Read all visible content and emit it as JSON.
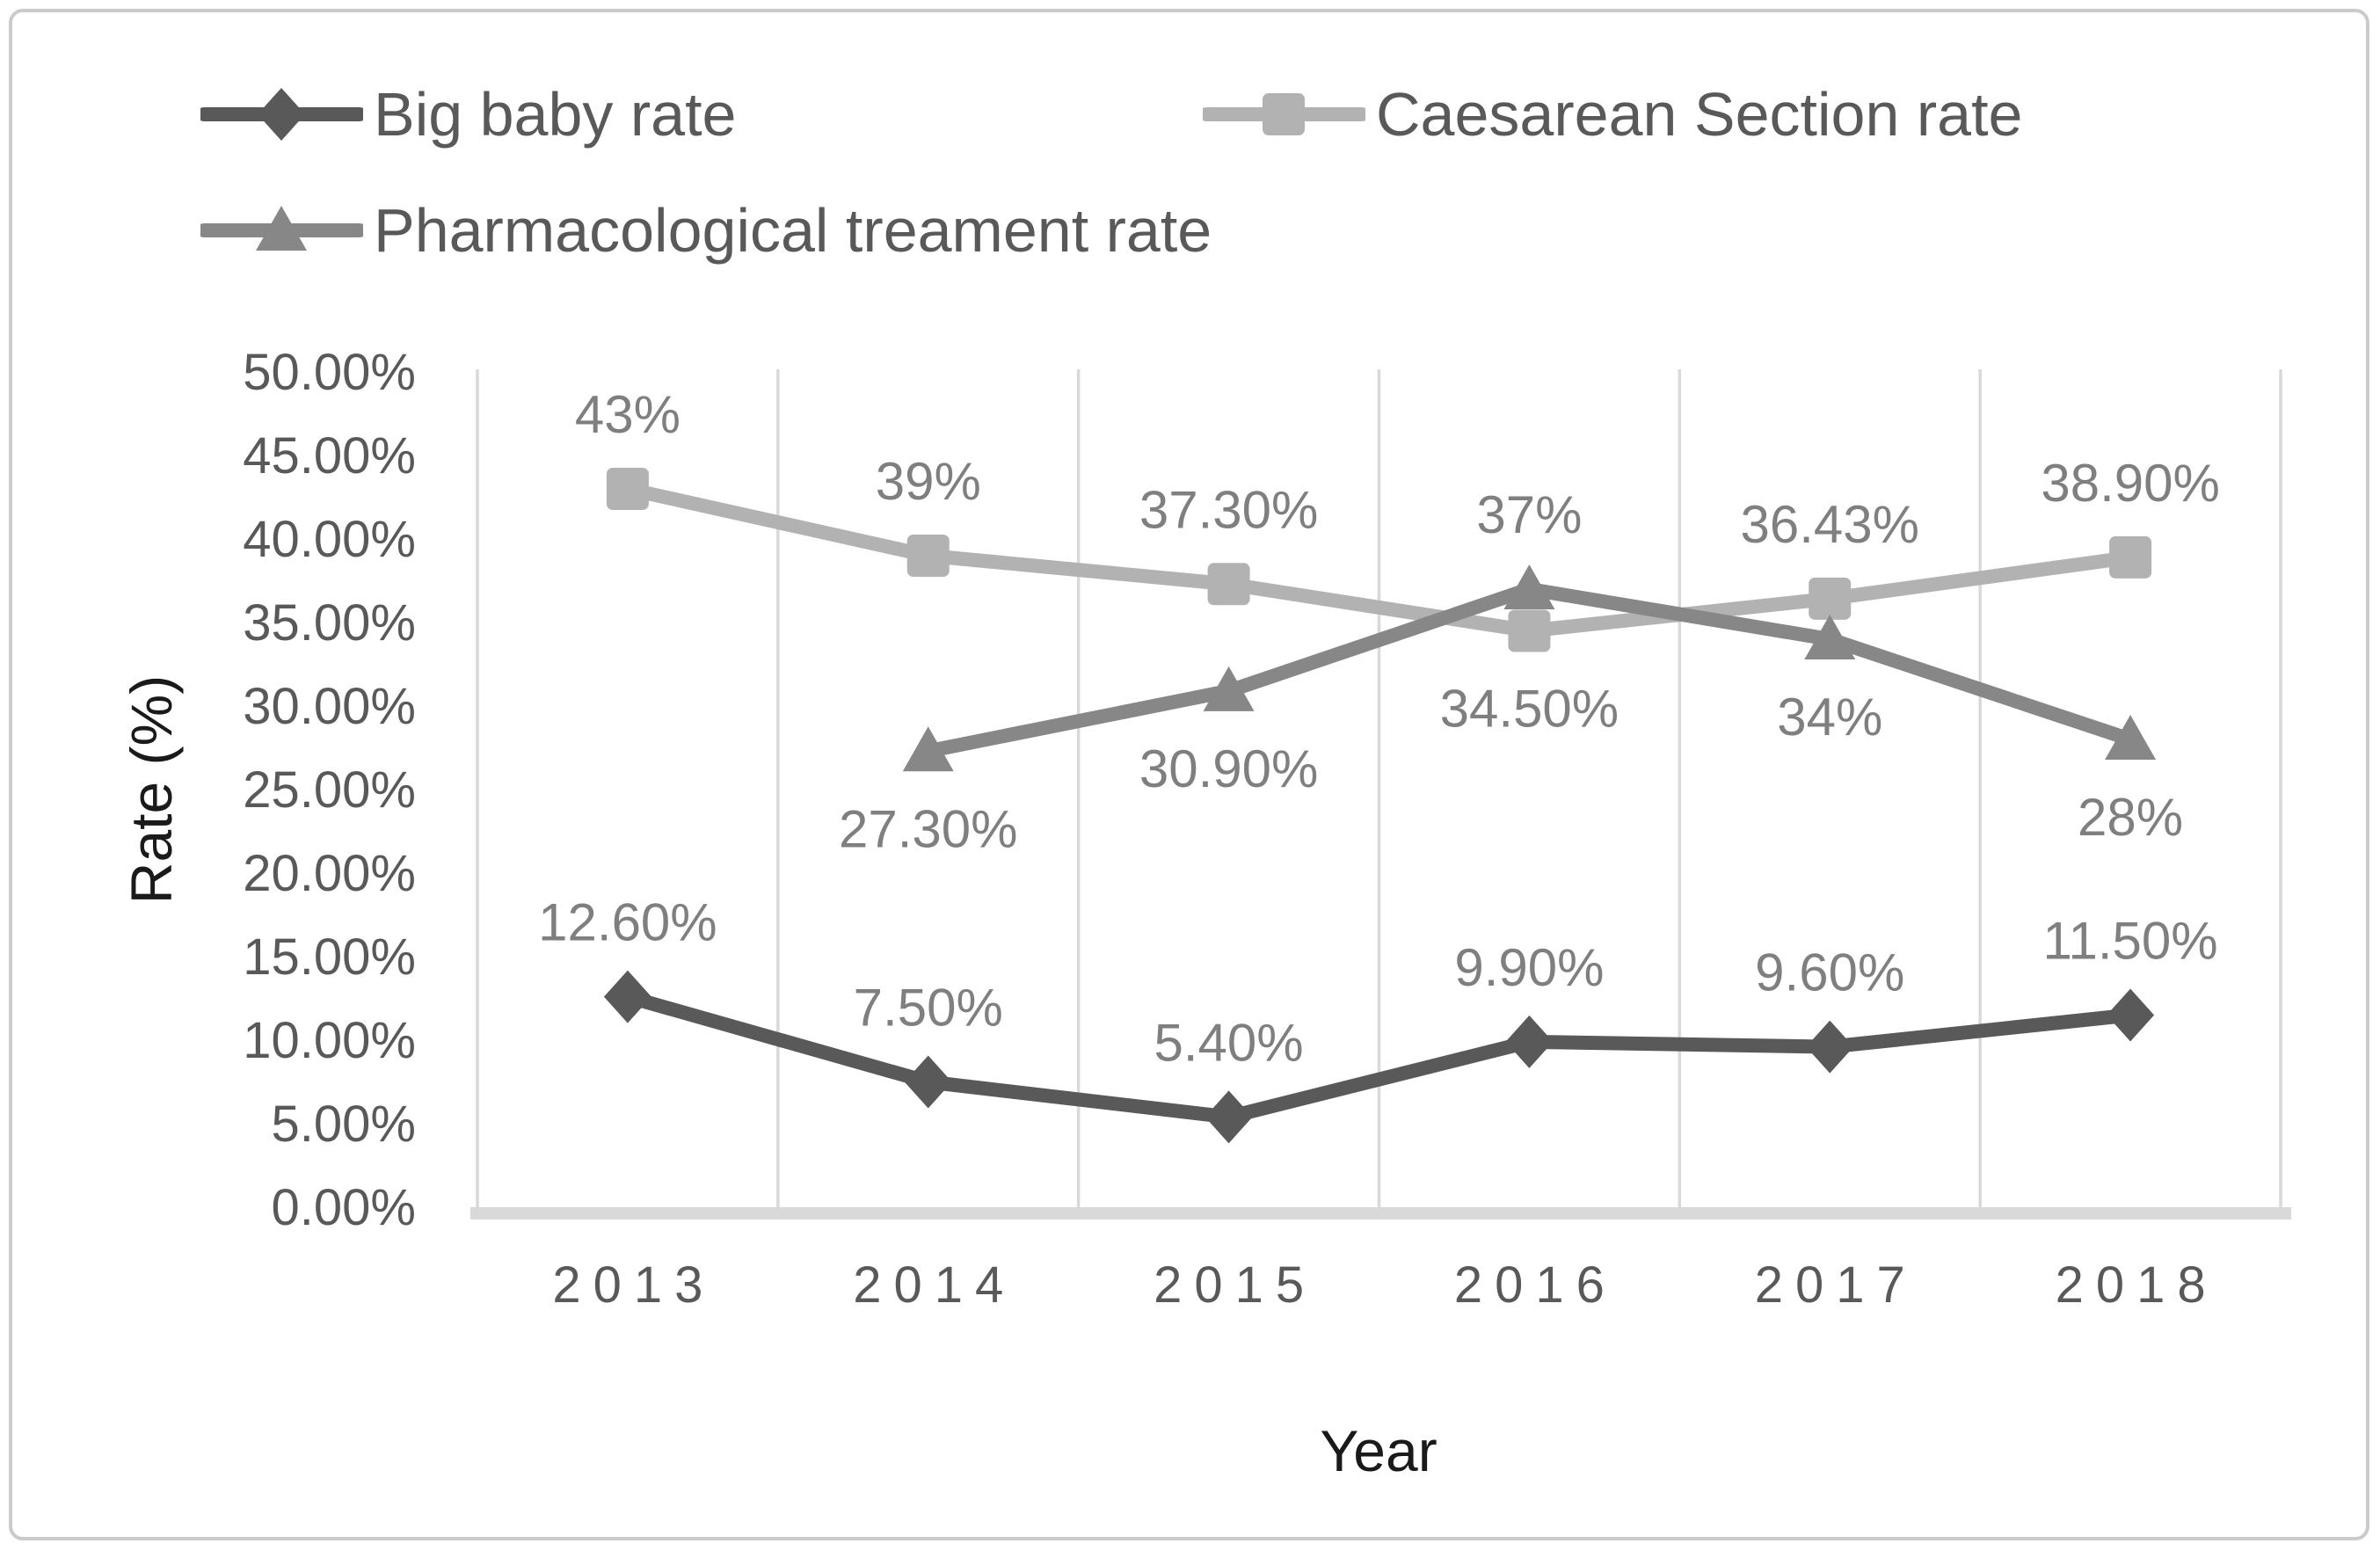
{
  "figure": {
    "background": "#ffffff",
    "border_color": "#cbcbcb"
  },
  "chart_data": {
    "type": "line",
    "title": "",
    "xlabel": "Year",
    "ylabel": "Rate (%)",
    "x": [
      "2013",
      "2014",
      "2015",
      "2016",
      "2017",
      "2018"
    ],
    "ylim": [
      0,
      50
    ],
    "ytick_step": 5,
    "yticks": [
      "0.00%",
      "5.00%",
      "10.00%",
      "15.00%",
      "20.00%",
      "25.00%",
      "30.00%",
      "35.00%",
      "40.00%",
      "45.00%",
      "50.00%"
    ],
    "grid": "vertical",
    "gridline_color": "#d9d9d9",
    "axis_band_color": "#d9d9d9",
    "axis_text_color": "#595959",
    "data_label_color": "#7f7f7f",
    "legend": {
      "position": "top-left",
      "columns": 2
    },
    "series": [
      {
        "name": "Big baby rate",
        "marker": "diamond",
        "color": "#595959",
        "values": [
          12.6,
          7.5,
          5.4,
          9.9,
          9.6,
          11.5
        ],
        "labels": [
          "12.60%",
          "7.50%",
          "5.40%",
          "9.90%",
          "9.60%",
          "11.50%"
        ],
        "label_side": [
          "above",
          "above",
          "above",
          "above",
          "above",
          "above"
        ]
      },
      {
        "name": "Caesarean Section rate",
        "marker": "square",
        "color": "#b2b2b2",
        "values": [
          43,
          39,
          37.3,
          34.5,
          36.43,
          38.9
        ],
        "labels": [
          "43%",
          "39%",
          "37.30%",
          "34.50%",
          "36.43%",
          "38.90%"
        ],
        "label_side": [
          "above",
          "above",
          "above",
          "below",
          "above",
          "above"
        ]
      },
      {
        "name": "Pharmacological treament rate",
        "marker": "triangle",
        "color": "#878787",
        "values": [
          null,
          27.3,
          30.9,
          37,
          34,
          28
        ],
        "labels": [
          null,
          "27.30%",
          "30.90%",
          "37%",
          "34%",
          "28%"
        ],
        "label_side": [
          null,
          "below",
          "below",
          "above",
          "below",
          "below"
        ]
      }
    ]
  }
}
